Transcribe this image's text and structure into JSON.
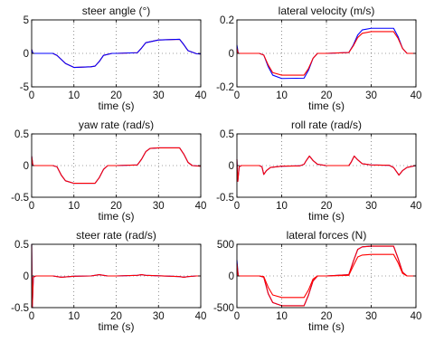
{
  "chart_data": [
    {
      "id": "steer_angle",
      "type": "line",
      "title": "steer angle (°)",
      "xlabel": "time (s)",
      "xlim": [
        0,
        40
      ],
      "ylim": [
        -5,
        5
      ],
      "xticks": [
        0,
        10,
        20,
        30,
        40
      ],
      "yticks": [
        -5,
        0,
        5
      ],
      "grid": "dotted",
      "series": [
        {
          "color": "#ff0000",
          "x": [
            0,
            0.3,
            1,
            5,
            6,
            8,
            10,
            14,
            15,
            16,
            17,
            19,
            20,
            25,
            26,
            27,
            30,
            35,
            36,
            37,
            39,
            40
          ],
          "y": [
            0.6,
            0,
            0,
            0,
            -0.3,
            -1.5,
            -2.1,
            -2.0,
            -1.9,
            -1.2,
            -0.3,
            0,
            0,
            0.1,
            0.8,
            1.6,
            2.0,
            2.1,
            1.3,
            0.4,
            -0.05,
            -0.1
          ]
        },
        {
          "color": "#0000ff",
          "x": [
            0,
            0.3,
            1,
            5,
            6,
            8,
            10,
            14,
            15,
            16,
            17,
            19,
            20,
            25,
            26,
            27,
            30,
            35,
            36,
            37,
            39,
            40
          ],
          "y": [
            0.6,
            0,
            0,
            0,
            -0.3,
            -1.5,
            -2.1,
            -2.0,
            -1.9,
            -1.2,
            -0.3,
            0,
            0,
            0.1,
            0.8,
            1.6,
            2.0,
            2.1,
            1.3,
            0.4,
            -0.05,
            -0.1
          ]
        }
      ]
    },
    {
      "id": "lateral_velocity",
      "type": "line",
      "title": "lateral velocity (m/s)",
      "xlabel": "time (s)",
      "xlim": [
        0,
        40
      ],
      "ylim": [
        -0.2,
        0.2
      ],
      "xticks": [
        0,
        10,
        20,
        30,
        40
      ],
      "yticks": [
        -0.2,
        0,
        0.2
      ],
      "grid": "dotted",
      "series": [
        {
          "color": "#0000ff",
          "x": [
            0,
            0.3,
            1,
            5,
            6,
            7,
            8,
            10,
            15,
            16,
            17,
            18,
            20,
            25,
            26,
            27,
            28,
            30,
            35,
            36,
            37,
            38,
            40
          ],
          "y": [
            0.05,
            0,
            0,
            0,
            -0.01,
            -0.08,
            -0.13,
            -0.15,
            -0.148,
            -0.1,
            -0.03,
            0,
            0,
            0.005,
            0.05,
            0.11,
            0.14,
            0.15,
            0.15,
            0.1,
            0.03,
            0,
            0
          ]
        },
        {
          "color": "#ff0000",
          "x": [
            0,
            0.3,
            1,
            5,
            6,
            7,
            8,
            10,
            15,
            16,
            17,
            18,
            20,
            25,
            26,
            27,
            28,
            30,
            35,
            36,
            37,
            38,
            40
          ],
          "y": [
            0.03,
            0,
            0,
            0,
            -0.01,
            -0.07,
            -0.115,
            -0.13,
            -0.13,
            -0.09,
            -0.03,
            0,
            0,
            0.005,
            0.045,
            0.095,
            0.12,
            0.13,
            0.13,
            0.09,
            0.03,
            0,
            0
          ]
        }
      ]
    },
    {
      "id": "yaw_rate",
      "type": "line",
      "title": "yaw rate (rad/s)",
      "xlabel": "time (s)",
      "xlim": [
        0,
        40
      ],
      "ylim": [
        -0.5,
        0.5
      ],
      "xticks": [
        0,
        10,
        20,
        30,
        40
      ],
      "yticks": [
        -0.5,
        0,
        0.5
      ],
      "grid": "dotted",
      "series": [
        {
          "color": "#0000ff",
          "x": [
            0,
            0.3,
            1,
            5,
            6,
            7,
            8,
            10,
            15,
            16,
            17,
            18,
            20,
            25,
            26,
            27,
            28,
            30,
            35,
            36,
            37,
            38,
            40
          ],
          "y": [
            0.15,
            0,
            0,
            0,
            -0.02,
            -0.15,
            -0.24,
            -0.28,
            -0.28,
            -0.19,
            -0.06,
            0,
            0,
            0.01,
            0.1,
            0.22,
            0.27,
            0.28,
            0.28,
            0.18,
            0.05,
            0,
            -0.01
          ]
        },
        {
          "color": "#ff0000",
          "x": [
            0,
            0.3,
            1,
            5,
            6,
            7,
            8,
            10,
            15,
            16,
            17,
            18,
            20,
            25,
            26,
            27,
            28,
            30,
            35,
            36,
            37,
            38,
            40
          ],
          "y": [
            0.15,
            0,
            0,
            0,
            -0.02,
            -0.15,
            -0.24,
            -0.28,
            -0.28,
            -0.19,
            -0.06,
            0,
            0,
            0.01,
            0.1,
            0.22,
            0.27,
            0.28,
            0.28,
            0.18,
            0.05,
            0,
            -0.01
          ]
        }
      ]
    },
    {
      "id": "roll_rate",
      "type": "line",
      "title": "roll rate (rad/s)",
      "xlabel": "time (s)",
      "xlim": [
        0,
        40
      ],
      "ylim": [
        -0.5,
        0.5
      ],
      "xticks": [
        0,
        10,
        20,
        30,
        40
      ],
      "yticks": [
        -0.5,
        0,
        0.5
      ],
      "grid": "dotted",
      "series": [
        {
          "color": "#0000ff",
          "x": [
            0,
            0.2,
            0.5,
            1,
            5,
            5.6,
            6.0,
            6.6,
            7.5,
            10,
            14,
            15,
            15.5,
            16.2,
            17,
            18,
            20,
            25,
            25.5,
            26.2,
            27,
            28,
            30,
            34,
            35,
            35.6,
            36.2,
            37,
            38,
            40
          ],
          "y": [
            0.1,
            -0.25,
            -0.02,
            0,
            0,
            -0.02,
            -0.14,
            -0.08,
            -0.03,
            -0.01,
            -0.005,
            0.02,
            0.08,
            0.15,
            0.08,
            0.02,
            0,
            0,
            0.05,
            0.15,
            0.09,
            0.03,
            0.01,
            0.005,
            -0.03,
            -0.09,
            -0.15,
            -0.08,
            -0.03,
            0
          ]
        },
        {
          "color": "#ff0000",
          "x": [
            0,
            0.2,
            0.5,
            1,
            5,
            5.6,
            6.0,
            6.6,
            7.5,
            10,
            14,
            15,
            15.5,
            16.2,
            17,
            18,
            20,
            25,
            25.5,
            26.2,
            27,
            28,
            30,
            34,
            35,
            35.6,
            36.2,
            37,
            38,
            40
          ],
          "y": [
            0.1,
            -0.25,
            -0.02,
            0,
            0,
            -0.02,
            -0.14,
            -0.08,
            -0.03,
            -0.01,
            -0.005,
            0.02,
            0.08,
            0.15,
            0.08,
            0.02,
            0,
            0,
            0.05,
            0.15,
            0.09,
            0.03,
            0.01,
            0.005,
            -0.03,
            -0.09,
            -0.15,
            -0.08,
            -0.03,
            0
          ]
        }
      ]
    },
    {
      "id": "steer_rate",
      "type": "line",
      "title": "steer rate (rad/s)",
      "xlabel": "time (s)",
      "xlim": [
        0,
        40
      ],
      "ylim": [
        -0.5,
        0.5
      ],
      "xticks": [
        0,
        10,
        20,
        30,
        40
      ],
      "yticks": [
        -0.5,
        0,
        0.5
      ],
      "grid": "dotted",
      "series": [
        {
          "color": "#0000ff",
          "x": [
            0,
            0.15,
            0.4,
            1,
            5,
            6,
            7,
            8,
            10,
            14,
            15,
            16,
            17,
            18,
            20,
            25,
            26,
            27,
            30,
            35,
            36,
            37,
            39,
            40
          ],
          "y": [
            0.5,
            -0.5,
            -0.02,
            0,
            0,
            -0.01,
            -0.02,
            -0.015,
            -0.005,
            0,
            0.01,
            0.02,
            0.01,
            0,
            0,
            0.01,
            0.02,
            0.01,
            0.002,
            -0.01,
            -0.02,
            -0.01,
            0,
            0
          ]
        },
        {
          "color": "#ff0000",
          "x": [
            0,
            0.15,
            0.4,
            1,
            5,
            6,
            7,
            8,
            10,
            14,
            15,
            16,
            17,
            18,
            20,
            25,
            26,
            27,
            30,
            35,
            36,
            37,
            39,
            40
          ],
          "y": [
            0.5,
            -0.5,
            -0.02,
            0,
            0,
            -0.01,
            -0.02,
            -0.015,
            -0.005,
            0,
            0.01,
            0.02,
            0.01,
            0,
            0,
            0.01,
            0.02,
            0.01,
            0.002,
            -0.01,
            -0.02,
            -0.01,
            0,
            0
          ]
        }
      ]
    },
    {
      "id": "lateral_forces",
      "type": "line",
      "title": "lateral forces (N)",
      "xlabel": "time (s)",
      "xlim": [
        0,
        40
      ],
      "ylim": [
        -500,
        500
      ],
      "xticks": [
        0,
        10,
        20,
        30,
        40
      ],
      "yticks": [
        -500,
        0,
        500
      ],
      "grid": "dotted",
      "series": [
        {
          "color": "#0000ff",
          "x": [
            0,
            0.3,
            1,
            5,
            6,
            7,
            8,
            10,
            15,
            16,
            17,
            18,
            20,
            25,
            26,
            27,
            28,
            30,
            35,
            36,
            37,
            38,
            40
          ],
          "y": [
            250,
            0,
            0,
            0,
            -20,
            -280,
            -420,
            -470,
            -470,
            -300,
            -80,
            0,
            0,
            20,
            230,
            420,
            460,
            470,
            470,
            280,
            60,
            0,
            0
          ]
        },
        {
          "color": "#ff0000",
          "x": [
            0,
            0.3,
            1,
            5,
            6,
            7,
            8,
            10,
            15,
            16,
            17,
            18,
            20,
            25,
            26,
            27,
            28,
            30,
            35,
            36,
            37,
            38,
            40
          ],
          "y": [
            200,
            0,
            0,
            0,
            -20,
            -280,
            -420,
            -470,
            -470,
            -300,
            -80,
            0,
            0,
            20,
            230,
            420,
            460,
            470,
            470,
            280,
            60,
            0,
            0
          ]
        },
        {
          "color": "#ff0000",
          "x": [
            0,
            0.3,
            1,
            5,
            6,
            7,
            8,
            10,
            15,
            16,
            17,
            18,
            20,
            25,
            26,
            27,
            28,
            30,
            35,
            36,
            37,
            38,
            40
          ],
          "y": [
            120,
            0,
            0,
            0,
            -10,
            -180,
            -300,
            -340,
            -340,
            -220,
            -50,
            0,
            0,
            10,
            160,
            300,
            330,
            340,
            340,
            210,
            40,
            0,
            0
          ]
        }
      ]
    }
  ]
}
